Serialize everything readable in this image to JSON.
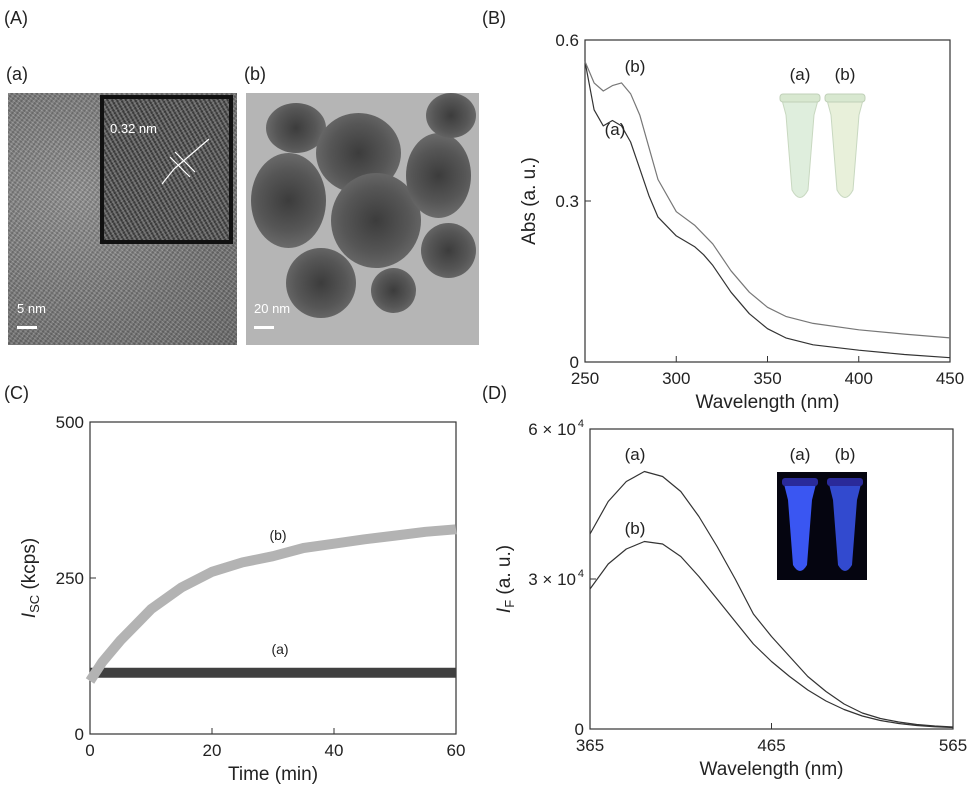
{
  "panels": {
    "A": {
      "label": "(A)",
      "sub_a": "(a)",
      "sub_b": "(b)",
      "img_a": {
        "lattice": "0.32 nm",
        "scalebar": "5 nm"
      },
      "img_b": {
        "scalebar": "20 nm"
      }
    },
    "B": {
      "label": "(B)"
    },
    "C": {
      "label": "(C)"
    },
    "D": {
      "label": "(D)"
    }
  },
  "chart_data": [
    {
      "id": "B",
      "type": "line",
      "xlabel": "Wavelength (nm)",
      "ylabel": "Abs (a. u.)",
      "xlim": [
        250,
        450
      ],
      "ylim": [
        0,
        0.6
      ],
      "xticks": [
        "250",
        "300",
        "350",
        "400",
        "450"
      ],
      "yticks": [
        "0",
        "0.3",
        "0.6"
      ],
      "inset": {
        "labels": [
          "(a)",
          "(b)"
        ],
        "colors": [
          "#dfeedd",
          "#e8f0da"
        ]
      },
      "series": [
        {
          "name": "(a)",
          "color": "#333333",
          "x": [
            250,
            255,
            260,
            265,
            270,
            275,
            280,
            285,
            290,
            300,
            310,
            315,
            320,
            330,
            340,
            350,
            360,
            375,
            400,
            425,
            450
          ],
          "y": [
            0.56,
            0.47,
            0.44,
            0.45,
            0.44,
            0.41,
            0.36,
            0.31,
            0.27,
            0.235,
            0.215,
            0.2,
            0.18,
            0.13,
            0.09,
            0.062,
            0.045,
            0.032,
            0.022,
            0.014,
            0.008
          ]
        },
        {
          "name": "(b)",
          "color": "#777777",
          "x": [
            250,
            255,
            260,
            265,
            270,
            275,
            280,
            285,
            290,
            300,
            310,
            320,
            330,
            340,
            350,
            360,
            375,
            400,
            425,
            450
          ],
          "y": [
            0.56,
            0.52,
            0.505,
            0.515,
            0.52,
            0.5,
            0.46,
            0.4,
            0.34,
            0.28,
            0.255,
            0.22,
            0.17,
            0.13,
            0.102,
            0.085,
            0.072,
            0.06,
            0.052,
            0.045
          ]
        }
      ]
    },
    {
      "id": "C",
      "type": "line",
      "xlabel": "Time (min)",
      "ylabel": "I",
      "ylabel_sub": "SC",
      "ylabel_unit": "(kcps)",
      "xlim": [
        0,
        60
      ],
      "ylim": [
        0,
        500
      ],
      "xticks": [
        "0",
        "20",
        "40",
        "60"
      ],
      "yticks": [
        "0",
        "250",
        "500"
      ],
      "series": [
        {
          "name": "(a)",
          "color": "#404040",
          "x": [
            0,
            10,
            20,
            30,
            40,
            50,
            60
          ],
          "y": [
            98,
            98,
            98,
            98,
            98,
            98,
            98
          ]
        },
        {
          "name": "(b)",
          "color": "#b3b3b3",
          "x": [
            0,
            2,
            5,
            8,
            10,
            15,
            20,
            25,
            30,
            35,
            40,
            45,
            50,
            55,
            60
          ],
          "y": [
            85,
            115,
            150,
            180,
            200,
            235,
            260,
            275,
            285,
            298,
            305,
            312,
            318,
            324,
            328
          ]
        }
      ]
    },
    {
      "id": "D",
      "type": "line",
      "xlabel": "Wavelength (nm)",
      "ylabel": "I",
      "ylabel_sub": "F",
      "ylabel_unit": "(a. u.)",
      "xlim": [
        365,
        565
      ],
      "ylim": [
        0,
        60000
      ],
      "xticks": [
        "365",
        "465",
        "565"
      ],
      "yticks": [
        {
          "v": 0,
          "t": "0"
        },
        {
          "v": 30000,
          "t": "3 × 10",
          "e": "4"
        },
        {
          "v": 60000,
          "t": "6 × 10",
          "e": "4"
        }
      ],
      "inset": {
        "labels": [
          "(a)",
          "(b)"
        ],
        "colors": [
          "#3d5bff",
          "#3d5bff"
        ]
      },
      "series": [
        {
          "name": "(a)",
          "color": "#333333",
          "x": [
            365,
            375,
            385,
            395,
            405,
            415,
            425,
            435,
            445,
            455,
            465,
            475,
            485,
            495,
            505,
            515,
            525,
            535,
            545,
            555,
            565
          ],
          "y": [
            39000,
            45500,
            49500,
            51500,
            50500,
            47500,
            42500,
            36500,
            30000,
            23000,
            18500,
            14500,
            10500,
            7500,
            5000,
            3200,
            2100,
            1400,
            900,
            600,
            400
          ]
        },
        {
          "name": "(b)",
          "color": "#333333",
          "x": [
            365,
            375,
            385,
            395,
            405,
            415,
            425,
            435,
            445,
            455,
            465,
            475,
            485,
            495,
            505,
            515,
            525,
            535,
            545,
            555,
            565
          ],
          "y": [
            28000,
            33000,
            36000,
            37500,
            37000,
            34500,
            30500,
            26000,
            21500,
            17000,
            13500,
            10500,
            7800,
            5600,
            3900,
            2600,
            1700,
            1100,
            700,
            450,
            300
          ]
        }
      ]
    }
  ]
}
